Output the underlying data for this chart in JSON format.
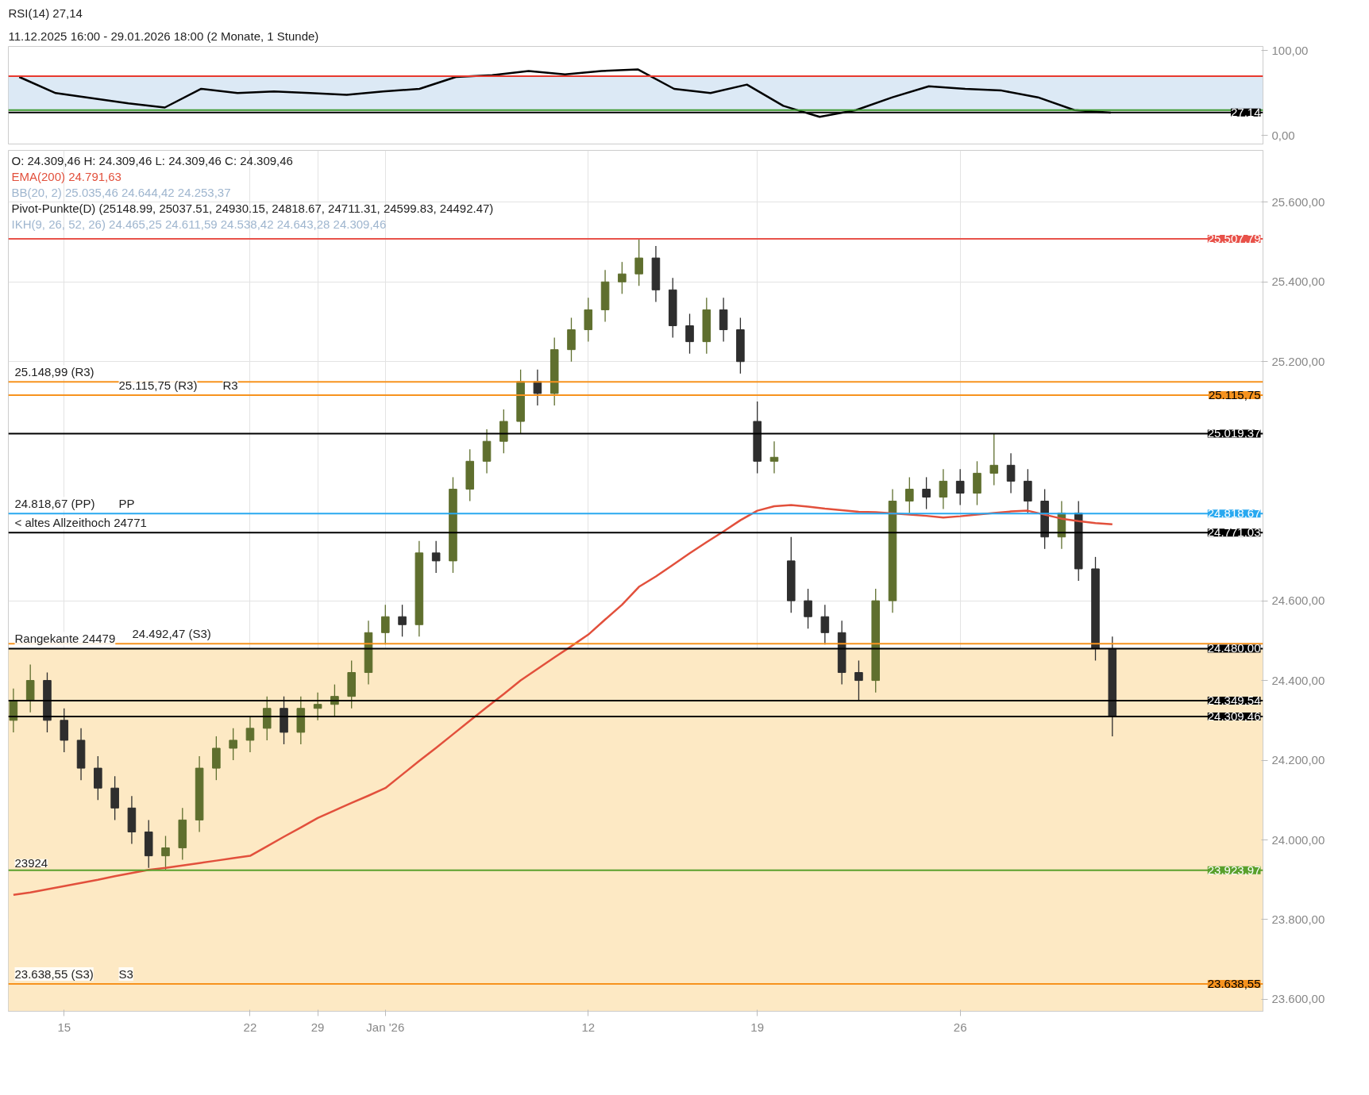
{
  "chart_data": [
    {
      "type": "line",
      "categories": [
        null,
        null,
        null,
        null,
        null,
        null,
        null,
        null,
        null,
        null,
        null,
        null,
        null,
        null,
        null,
        null,
        null,
        null,
        null,
        null,
        null,
        null,
        null,
        null,
        null,
        null,
        null,
        null,
        null,
        null,
        null
      ],
      "title": "RSI(14)  27,14",
      "subtitle": "11.12.2025 16:00 - 29.01.2026 18:00  (2 Monate, 1 Stunde)",
      "series": [
        {
          "color": "#000000",
          "values": [
            69,
            50,
            44,
            38,
            33,
            55,
            50,
            52,
            50,
            48,
            52,
            55,
            69,
            71,
            76,
            72,
            76,
            78,
            55,
            50,
            60,
            35,
            22,
            30,
            45,
            58,
            55,
            53,
            45,
            30,
            27
          ]
        }
      ],
      "ylim": [
        -10,
        105
      ],
      "yticks": [
        {
          "value": 0,
          "label": "0,00"
        },
        {
          "value": 100,
          "label": "100,00"
        }
      ],
      "tick_labels": "y",
      "line_style": "solid",
      "ref_lines": [
        {
          "axis": "y",
          "value": 70,
          "color": "#e8392e"
        },
        {
          "axis": "y",
          "value": 30,
          "color": "#3d9a2f"
        },
        {
          "axis": "y",
          "value": 27.14,
          "label": "27,14",
          "color": "#000000"
        }
      ],
      "bands": [
        {
          "axis": "y",
          "from": 30,
          "to": 70,
          "color": "#dce9f5"
        }
      ]
    },
    {
      "type": "candlestick",
      "categories": [
        null,
        null,
        null,
        "15",
        null,
        null,
        null,
        null,
        null,
        null,
        null,
        null,
        null,
        null,
        "22",
        null,
        null,
        null,
        "29",
        null,
        null,
        null,
        "Jan '26",
        null,
        null,
        null,
        null,
        null,
        null,
        null,
        null,
        null,
        null,
        null,
        "12",
        null,
        null,
        null,
        null,
        null,
        null,
        null,
        null,
        null,
        "19",
        null,
        null,
        null,
        null,
        null,
        null,
        null,
        null,
        null,
        null,
        null,
        "26",
        null,
        null,
        null,
        null,
        null,
        null,
        null,
        null,
        null
      ],
      "ohlc": [
        [
          24300,
          24380,
          24270,
          24350
        ],
        [
          24350,
          24440,
          24320,
          24400
        ],
        [
          24400,
          24420,
          24270,
          24300
        ],
        [
          24300,
          24330,
          24220,
          24250
        ],
        [
          24250,
          24280,
          24150,
          24180
        ],
        [
          24180,
          24210,
          24100,
          24130
        ],
        [
          24130,
          24160,
          24050,
          24080
        ],
        [
          24080,
          24110,
          23990,
          24020
        ],
        [
          24020,
          24050,
          23930,
          23960
        ],
        [
          23960,
          24010,
          23924,
          23980
        ],
        [
          23980,
          24080,
          23950,
          24050
        ],
        [
          24050,
          24210,
          24020,
          24180
        ],
        [
          24180,
          24260,
          24150,
          24230
        ],
        [
          24230,
          24280,
          24200,
          24250
        ],
        [
          24250,
          24310,
          24220,
          24280
        ],
        [
          24280,
          24360,
          24250,
          24330
        ],
        [
          24330,
          24360,
          24240,
          24270
        ],
        [
          24270,
          24360,
          24240,
          24330
        ],
        [
          24330,
          24370,
          24300,
          24340
        ],
        [
          24340,
          24390,
          24310,
          24360
        ],
        [
          24360,
          24450,
          24330,
          24420
        ],
        [
          24420,
          24550,
          24390,
          24520
        ],
        [
          24520,
          24590,
          24490,
          24560
        ],
        [
          24560,
          24590,
          24510,
          24540
        ],
        [
          24540,
          24750,
          24510,
          24720
        ],
        [
          24720,
          24750,
          24670,
          24700
        ],
        [
          24700,
          24910,
          24670,
          24880
        ],
        [
          24880,
          24980,
          24850,
          24950
        ],
        [
          24950,
          25030,
          24920,
          25000
        ],
        [
          25000,
          25080,
          24970,
          25050
        ],
        [
          25050,
          25180,
          25020,
          25150
        ],
        [
          25150,
          25180,
          25090,
          25120
        ],
        [
          25120,
          25260,
          25090,
          25230
        ],
        [
          25230,
          25310,
          25200,
          25280
        ],
        [
          25280,
          25360,
          25250,
          25330
        ],
        [
          25330,
          25430,
          25300,
          25400
        ],
        [
          25400,
          25450,
          25370,
          25420
        ],
        [
          25420,
          25507,
          25390,
          25460
        ],
        [
          25460,
          25490,
          25350,
          25380
        ],
        [
          25380,
          25410,
          25260,
          25290
        ],
        [
          25290,
          25320,
          25220,
          25250
        ],
        [
          25250,
          25360,
          25220,
          25330
        ],
        [
          25330,
          25360,
          25250,
          25280
        ],
        [
          25280,
          25310,
          25170,
          25200
        ],
        [
          25050,
          25100,
          24920,
          24950
        ],
        [
          24950,
          25000,
          24920,
          24960
        ],
        [
          24700,
          24760,
          24570,
          24600
        ],
        [
          24600,
          24630,
          24530,
          24560
        ],
        [
          24560,
          24590,
          24490,
          24520
        ],
        [
          24520,
          24550,
          24390,
          24420
        ],
        [
          24420,
          24450,
          24350,
          24400
        ],
        [
          24400,
          24630,
          24370,
          24600
        ],
        [
          24600,
          24880,
          24570,
          24850
        ],
        [
          24850,
          24910,
          24820,
          24880
        ],
        [
          24880,
          24910,
          24830,
          24860
        ],
        [
          24860,
          24930,
          24830,
          24900
        ],
        [
          24900,
          24930,
          24840,
          24870
        ],
        [
          24870,
          24950,
          24840,
          24920
        ],
        [
          24920,
          25019,
          24890,
          24940
        ],
        [
          24940,
          24970,
          24870,
          24900
        ],
        [
          24900,
          24930,
          24820,
          24850
        ],
        [
          24850,
          24880,
          24730,
          24760
        ],
        [
          24760,
          24850,
          24730,
          24820
        ],
        [
          24820,
          24850,
          24650,
          24680
        ],
        [
          24680,
          24710,
          24450,
          24480
        ],
        [
          24480,
          24510,
          24260,
          24309.46
        ]
      ],
      "series": [
        {
          "type": "line",
          "name": "EMA(200)  24.791,63",
          "color": "#e2503c",
          "values": [
            23862,
            23868,
            23876,
            23884,
            23892,
            23900,
            23909,
            23917,
            23925,
            23930,
            23936,
            23942,
            23948,
            23954,
            23960,
            23984,
            24008,
            24031,
            24055,
            24074,
            24093,
            24111,
            24130,
            24164,
            24198,
            24231,
            24265,
            24299,
            24333,
            24366,
            24400,
            24429,
            24458,
            24486,
            24515,
            24553,
            24590,
            24635,
            24661,
            24690,
            24719,
            24747,
            24774,
            24802,
            24826,
            24837,
            24840,
            24836,
            24831,
            24827,
            24823,
            24822,
            24819,
            24816,
            24813,
            24809,
            24812,
            24816,
            24820,
            24824,
            24826,
            24816,
            24806,
            24800,
            24795,
            24791.63
          ]
        }
      ],
      "ylim": [
        23570,
        25730
      ],
      "yticks": [
        {
          "value": 23600,
          "label": "23.600,00"
        },
        {
          "value": 23800,
          "label": "23.800,00"
        },
        {
          "value": 24000,
          "label": "24.000,00"
        },
        {
          "value": 24200,
          "label": "24.200,00"
        },
        {
          "value": 24400,
          "label": "24.400,00"
        },
        {
          "value": 24600,
          "label": "24.600,00"
        },
        {
          "value": 25200,
          "label": "25.200,00"
        },
        {
          "value": 25400,
          "label": "25.400,00"
        },
        {
          "value": 25600,
          "label": "25.600,00"
        }
      ],
      "grid": true,
      "ref_lines": [
        {
          "axis": "y",
          "value": 25507.79,
          "label": "25.507,79",
          "color": "#e8524a"
        },
        {
          "axis": "y",
          "value": 25148.99,
          "color": "#f7931e"
        },
        {
          "axis": "y",
          "value": 25115.75,
          "label": "25.115,75",
          "color": "#f7931e"
        },
        {
          "axis": "y",
          "value": 25019.37,
          "label": "25.019,37",
          "color": "#000000"
        },
        {
          "axis": "y",
          "value": 24818.67,
          "label": "24.818,67",
          "color": "#29a9f0"
        },
        {
          "axis": "y",
          "value": 24771.03,
          "label": "24.771,03",
          "color": "#000000"
        },
        {
          "axis": "y",
          "value": 24492.47,
          "color": "#f7931e"
        },
        {
          "axis": "y",
          "value": 24480.0,
          "label": "24.480,00",
          "color": "#000000"
        },
        {
          "axis": "y",
          "value": 24349.54,
          "label": "24.349,54",
          "color": "#000000"
        },
        {
          "axis": "y",
          "value": 24309.46,
          "label": "24.309,46",
          "color": "#000000"
        },
        {
          "axis": "y",
          "value": 23923.97,
          "label": "23.923,97",
          "color": "#5aa02c"
        },
        {
          "axis": "y",
          "value": 23638.55,
          "label": "23.638,55",
          "color": "#f7931e"
        }
      ],
      "bands": [
        {
          "axis": "y",
          "from": 23570,
          "to": 24480,
          "color": "#fde9c4"
        }
      ],
      "annotations": [
        "O: 24.309,46  H: 24.309,46  L: 24.309,46  C: 24.309,46",
        "BB(20, 2)  25.035,46  24.644,42  24.253,37",
        "Pivot-Punkte(D)  (25148.99,  25037.51,  24930.15,  24818.67,  24711.31,  24599.83,  24492.47)",
        "IKH(9, 26, 52, 26)  24.465,25  24.611,59  24.538,42  24.643,28  24.309,46",
        {
          "text": "< altes Allzeithoch 24771",
          "y": 24771.03
        },
        {
          "text": "Rangekante 24479",
          "y": 24480.0
        },
        {
          "text": "23924",
          "y": 23923.97
        },
        {
          "text": "25.148,99 (R3)",
          "y": 25148.99
        },
        {
          "text": "25.115,75 (R3)",
          "y": 25115.75
        },
        {
          "text": "R3",
          "y": 25115.75
        },
        {
          "text": "24.818,67 (PP)",
          "y": 24818.67
        },
        {
          "text": "PP",
          "y": 24818.67
        },
        {
          "text": "24.492,47 (S3)",
          "y": 24492.47
        },
        {
          "text": "23.638,55 (S3)",
          "y": 23638.55
        },
        {
          "text": "S3",
          "y": 23638.55
        }
      ]
    }
  ]
}
